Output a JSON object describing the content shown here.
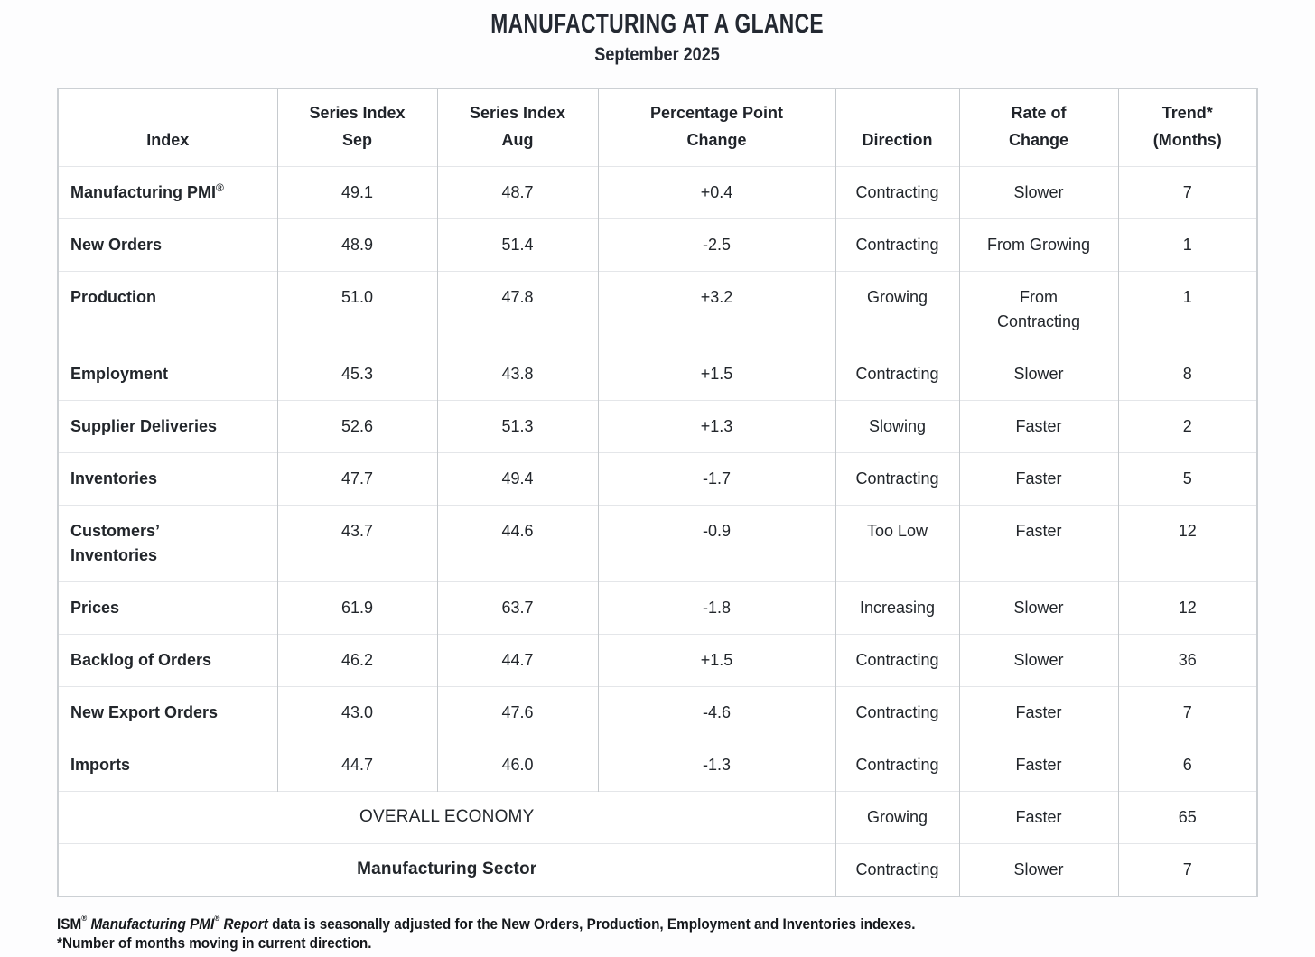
{
  "page": {
    "title": "MANUFACTURING AT A GLANCE",
    "subtitle": "September 2025"
  },
  "table": {
    "headers": [
      "Index",
      "Series Index\nSep",
      "Series Index\nAug",
      "Percentage Point\nChange",
      "Direction",
      "Rate of\nChange",
      "Trend*\n(Months)"
    ],
    "rows": [
      {
        "index": "Manufacturing PMI",
        "index_sup": "®",
        "sep": "49.1",
        "aug": "48.7",
        "change": "+0.4",
        "direction": "Contracting",
        "rate": "Slower",
        "trend": "7"
      },
      {
        "index": "New Orders",
        "sep": "48.9",
        "aug": "51.4",
        "change": "-2.5",
        "direction": "Contracting",
        "rate": "From Growing",
        "trend": "1"
      },
      {
        "index": "Production",
        "sep": "51.0",
        "aug": "47.8",
        "change": "+3.2",
        "direction": "Growing",
        "rate": "From\nContracting",
        "trend": "1"
      },
      {
        "index": "Employment",
        "sep": "45.3",
        "aug": "43.8",
        "change": "+1.5",
        "direction": "Contracting",
        "rate": "Slower",
        "trend": "8"
      },
      {
        "index": "Supplier Deliveries",
        "sep": "52.6",
        "aug": "51.3",
        "change": "+1.3",
        "direction": "Slowing",
        "rate": "Faster",
        "trend": "2"
      },
      {
        "index": "Inventories",
        "sep": "47.7",
        "aug": "49.4",
        "change": "-1.7",
        "direction": "Contracting",
        "rate": "Faster",
        "trend": "5"
      },
      {
        "index": "Customers’\nInventories",
        "sep": "43.7",
        "aug": "44.6",
        "change": "-0.9",
        "direction": "Too Low",
        "rate": "Faster",
        "trend": "12"
      },
      {
        "index": "Prices",
        "sep": "61.9",
        "aug": "63.7",
        "change": "-1.8",
        "direction": "Increasing",
        "rate": "Slower",
        "trend": "12"
      },
      {
        "index": "Backlog of Orders",
        "sep": "46.2",
        "aug": "44.7",
        "change": "+1.5",
        "direction": "Contracting",
        "rate": "Slower",
        "trend": "36"
      },
      {
        "index": "New Export Orders",
        "sep": "43.0",
        "aug": "47.6",
        "change": "-4.6",
        "direction": "Contracting",
        "rate": "Faster",
        "trend": "7"
      },
      {
        "index": "Imports",
        "sep": "44.7",
        "aug": "46.0",
        "change": "-1.3",
        "direction": "Contracting",
        "rate": "Faster",
        "trend": "6"
      }
    ],
    "summary_rows": [
      {
        "label": "OVERALL ECONOMY",
        "direction": "Growing",
        "rate": "Faster",
        "trend": "65"
      },
      {
        "label": "Manufacturing Sector",
        "direction": "Contracting",
        "rate": "Slower",
        "trend": "7"
      }
    ]
  },
  "footnote": {
    "ism": "ISM",
    "reg1": "®",
    "italic_name": " Manufacturing PMI",
    "reg2": "®",
    "italic_report": " Report",
    "line1_rest": " data is seasonally adjusted for the New Orders, Production, Employment and Inventories indexes.",
    "line2": "*Number of months moving in current direction."
  }
}
